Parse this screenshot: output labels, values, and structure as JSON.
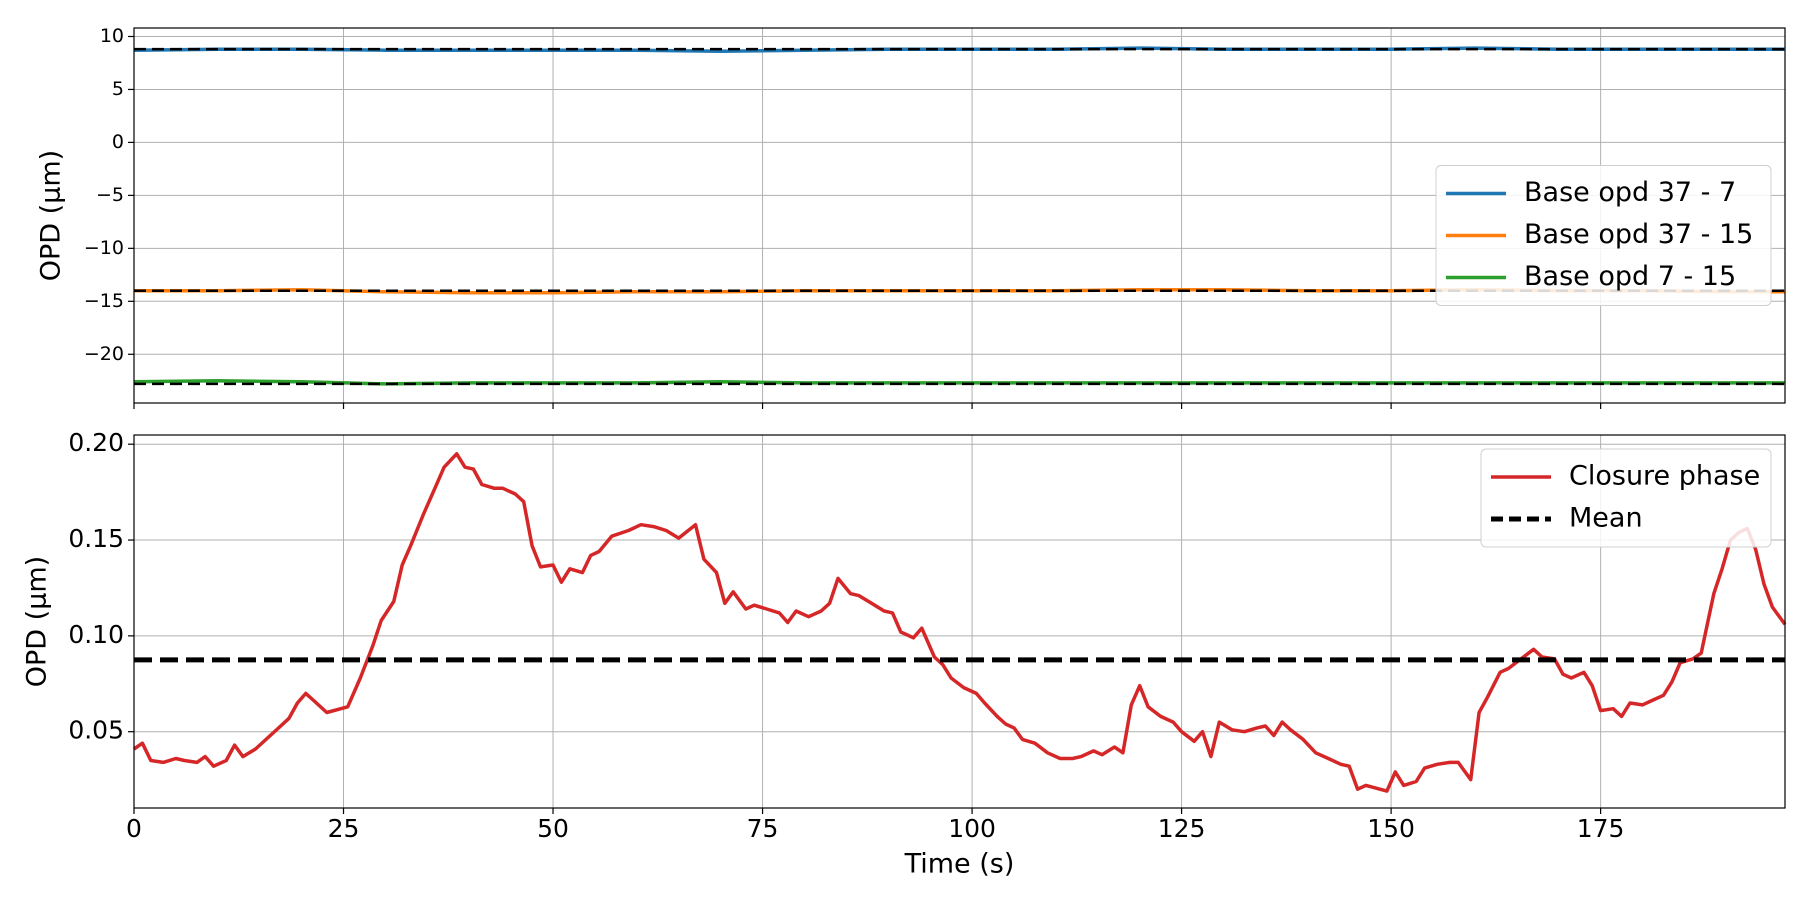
{
  "chart_data": [
    {
      "type": "line",
      "ylabel": "OPD (μm)",
      "legend": "center right",
      "grid": true,
      "x": [
        0,
        10,
        20,
        30,
        40,
        50,
        60,
        70,
        80,
        90,
        100,
        110,
        120,
        130,
        140,
        150,
        160,
        170,
        180,
        190,
        197
      ],
      "xlim": [
        0,
        197
      ],
      "ylim": [
        -24.6,
        10.8
      ],
      "yticks": [
        {
          "value": -20,
          "label": "−20"
        },
        {
          "value": -15,
          "label": "−15"
        },
        {
          "value": -10,
          "label": "−10"
        },
        {
          "value": -5,
          "label": "−5"
        },
        0,
        5,
        10
      ],
      "mean_color": "#000000",
      "series": [
        {
          "name": "Base opd 37 - 7",
          "color": "#1f77b4",
          "mean": 8.8,
          "values": [
            8.7,
            8.8,
            8.8,
            8.7,
            8.7,
            8.7,
            8.7,
            8.6,
            8.7,
            8.8,
            8.8,
            8.8,
            8.9,
            8.8,
            8.8,
            8.8,
            8.9,
            8.8,
            8.8,
            8.8,
            8.8
          ]
        },
        {
          "name": "Base opd 37 - 15",
          "color": "#ff7f0e",
          "mean": -14.0,
          "values": [
            -14.0,
            -14.0,
            -13.9,
            -14.1,
            -14.2,
            -14.2,
            -14.1,
            -14.1,
            -14.0,
            -14.0,
            -14.0,
            -14.0,
            -13.9,
            -13.9,
            -14.0,
            -14.0,
            -13.9,
            -14.0,
            -14.0,
            -14.1,
            -14.1
          ]
        },
        {
          "name": "Base opd 7 - 15",
          "color": "#2ca02c",
          "mean": -22.8,
          "values": [
            -22.6,
            -22.5,
            -22.6,
            -22.8,
            -22.7,
            -22.7,
            -22.7,
            -22.6,
            -22.7,
            -22.7,
            -22.7,
            -22.7,
            -22.7,
            -22.7,
            -22.7,
            -22.7,
            -22.7,
            -22.7,
            -22.7,
            -22.7,
            -22.7
          ]
        }
      ]
    },
    {
      "type": "line",
      "ylabel": "OPD (μm)",
      "xlabel": "Time (s)",
      "legend": "upper right",
      "grid": true,
      "x": [
        0,
        1,
        2,
        3.5,
        5,
        6,
        7.5,
        8.5,
        9.5,
        11,
        12,
        13,
        14.5,
        16,
        17.5,
        18.5,
        19.5,
        20.5,
        21.5,
        23,
        25.5,
        27,
        28.5,
        29.5,
        31,
        32,
        33,
        34.5,
        36,
        37,
        38.5,
        39.5,
        40.5,
        41.5,
        43,
        44,
        45.5,
        46.5,
        47.5,
        48.5,
        50,
        51,
        52,
        53.5,
        54.5,
        55.5,
        57,
        59,
        60.5,
        62,
        63.5,
        65,
        67,
        68,
        69.5,
        70.5,
        71.5,
        73,
        74,
        75.5,
        77,
        78,
        79,
        80.5,
        82,
        83,
        84,
        85.5,
        86.5,
        88,
        89.5,
        90.5,
        91.5,
        93,
        94,
        95.5,
        96.5,
        97.5,
        99,
        100.5,
        101.5,
        103,
        104,
        105,
        106,
        107.5,
        109,
        110.5,
        112,
        113,
        114.5,
        115.5,
        117,
        118,
        119,
        120,
        121,
        122.5,
        124,
        125,
        126.5,
        127.5,
        128.5,
        129.5,
        131,
        132.5,
        134,
        135,
        136,
        137,
        138,
        139.5,
        141,
        142.5,
        144,
        145,
        146,
        147,
        149.5,
        150.5,
        151.5,
        153,
        154,
        155.5,
        157,
        158,
        159.5,
        160.5,
        161.5,
        163,
        164,
        165.5,
        167,
        168,
        169.5,
        170.5,
        171.5,
        173,
        174,
        175,
        176.5,
        177.5,
        178.5,
        180,
        181,
        182.5,
        183.5,
        184.5,
        186,
        187,
        188.5,
        189.5,
        190.5,
        191.5,
        192.5,
        193.5,
        194.5,
        195.5,
        197
      ],
      "xlim": [
        0,
        197
      ],
      "xticks": [
        0,
        25,
        50,
        75,
        100,
        125,
        150,
        175
      ],
      "ylim": [
        0.0102,
        0.2048
      ],
      "yticks": [
        0.05,
        {
          "value": 0.1,
          "label": "0.10"
        },
        0.15,
        {
          "value": 0.2,
          "label": "0.20"
        }
      ],
      "series": [
        {
          "name": "Closure phase",
          "color": "#d62728",
          "values": [
            0.041,
            0.044,
            0.035,
            0.034,
            0.036,
            0.035,
            0.034,
            0.037,
            0.032,
            0.035,
            0.043,
            0.037,
            0.041,
            0.047,
            0.053,
            0.057,
            0.065,
            0.07,
            0.066,
            0.06,
            0.063,
            0.078,
            0.095,
            0.108,
            0.118,
            0.137,
            0.147,
            0.163,
            0.178,
            0.188,
            0.195,
            0.188,
            0.187,
            0.179,
            0.177,
            0.177,
            0.174,
            0.17,
            0.147,
            0.136,
            0.137,
            0.128,
            0.135,
            0.133,
            0.142,
            0.144,
            0.152,
            0.155,
            0.158,
            0.157,
            0.155,
            0.151,
            0.158,
            0.14,
            0.133,
            0.117,
            0.123,
            0.114,
            0.116,
            0.114,
            0.112,
            0.107,
            0.113,
            0.11,
            0.113,
            0.117,
            0.13,
            0.122,
            0.121,
            0.117,
            0.113,
            0.112,
            0.102,
            0.099,
            0.104,
            0.089,
            0.085,
            0.078,
            0.073,
            0.07,
            0.065,
            0.058,
            0.054,
            0.052,
            0.046,
            0.044,
            0.039,
            0.036,
            0.036,
            0.037,
            0.04,
            0.038,
            0.042,
            0.039,
            0.064,
            0.074,
            0.063,
            0.058,
            0.055,
            0.05,
            0.045,
            0.05,
            0.037,
            0.055,
            0.051,
            0.05,
            0.052,
            0.053,
            0.048,
            0.055,
            0.051,
            0.046,
            0.039,
            0.036,
            0.033,
            0.032,
            0.02,
            0.022,
            0.019,
            0.029,
            0.022,
            0.024,
            0.031,
            0.033,
            0.034,
            0.034,
            0.025,
            0.06,
            0.068,
            0.081,
            0.083,
            0.088,
            0.093,
            0.089,
            0.088,
            0.08,
            0.078,
            0.081,
            0.074,
            0.061,
            0.062,
            0.058,
            0.065,
            0.064,
            0.066,
            0.069,
            0.076,
            0.086,
            0.088,
            0.091,
            0.122,
            0.135,
            0.15,
            0.154,
            0.156,
            0.145,
            0.127,
            0.115,
            0.106
          ]
        }
      ],
      "mean": {
        "name": "Mean",
        "value": 0.0875,
        "color": "#000000"
      }
    }
  ]
}
